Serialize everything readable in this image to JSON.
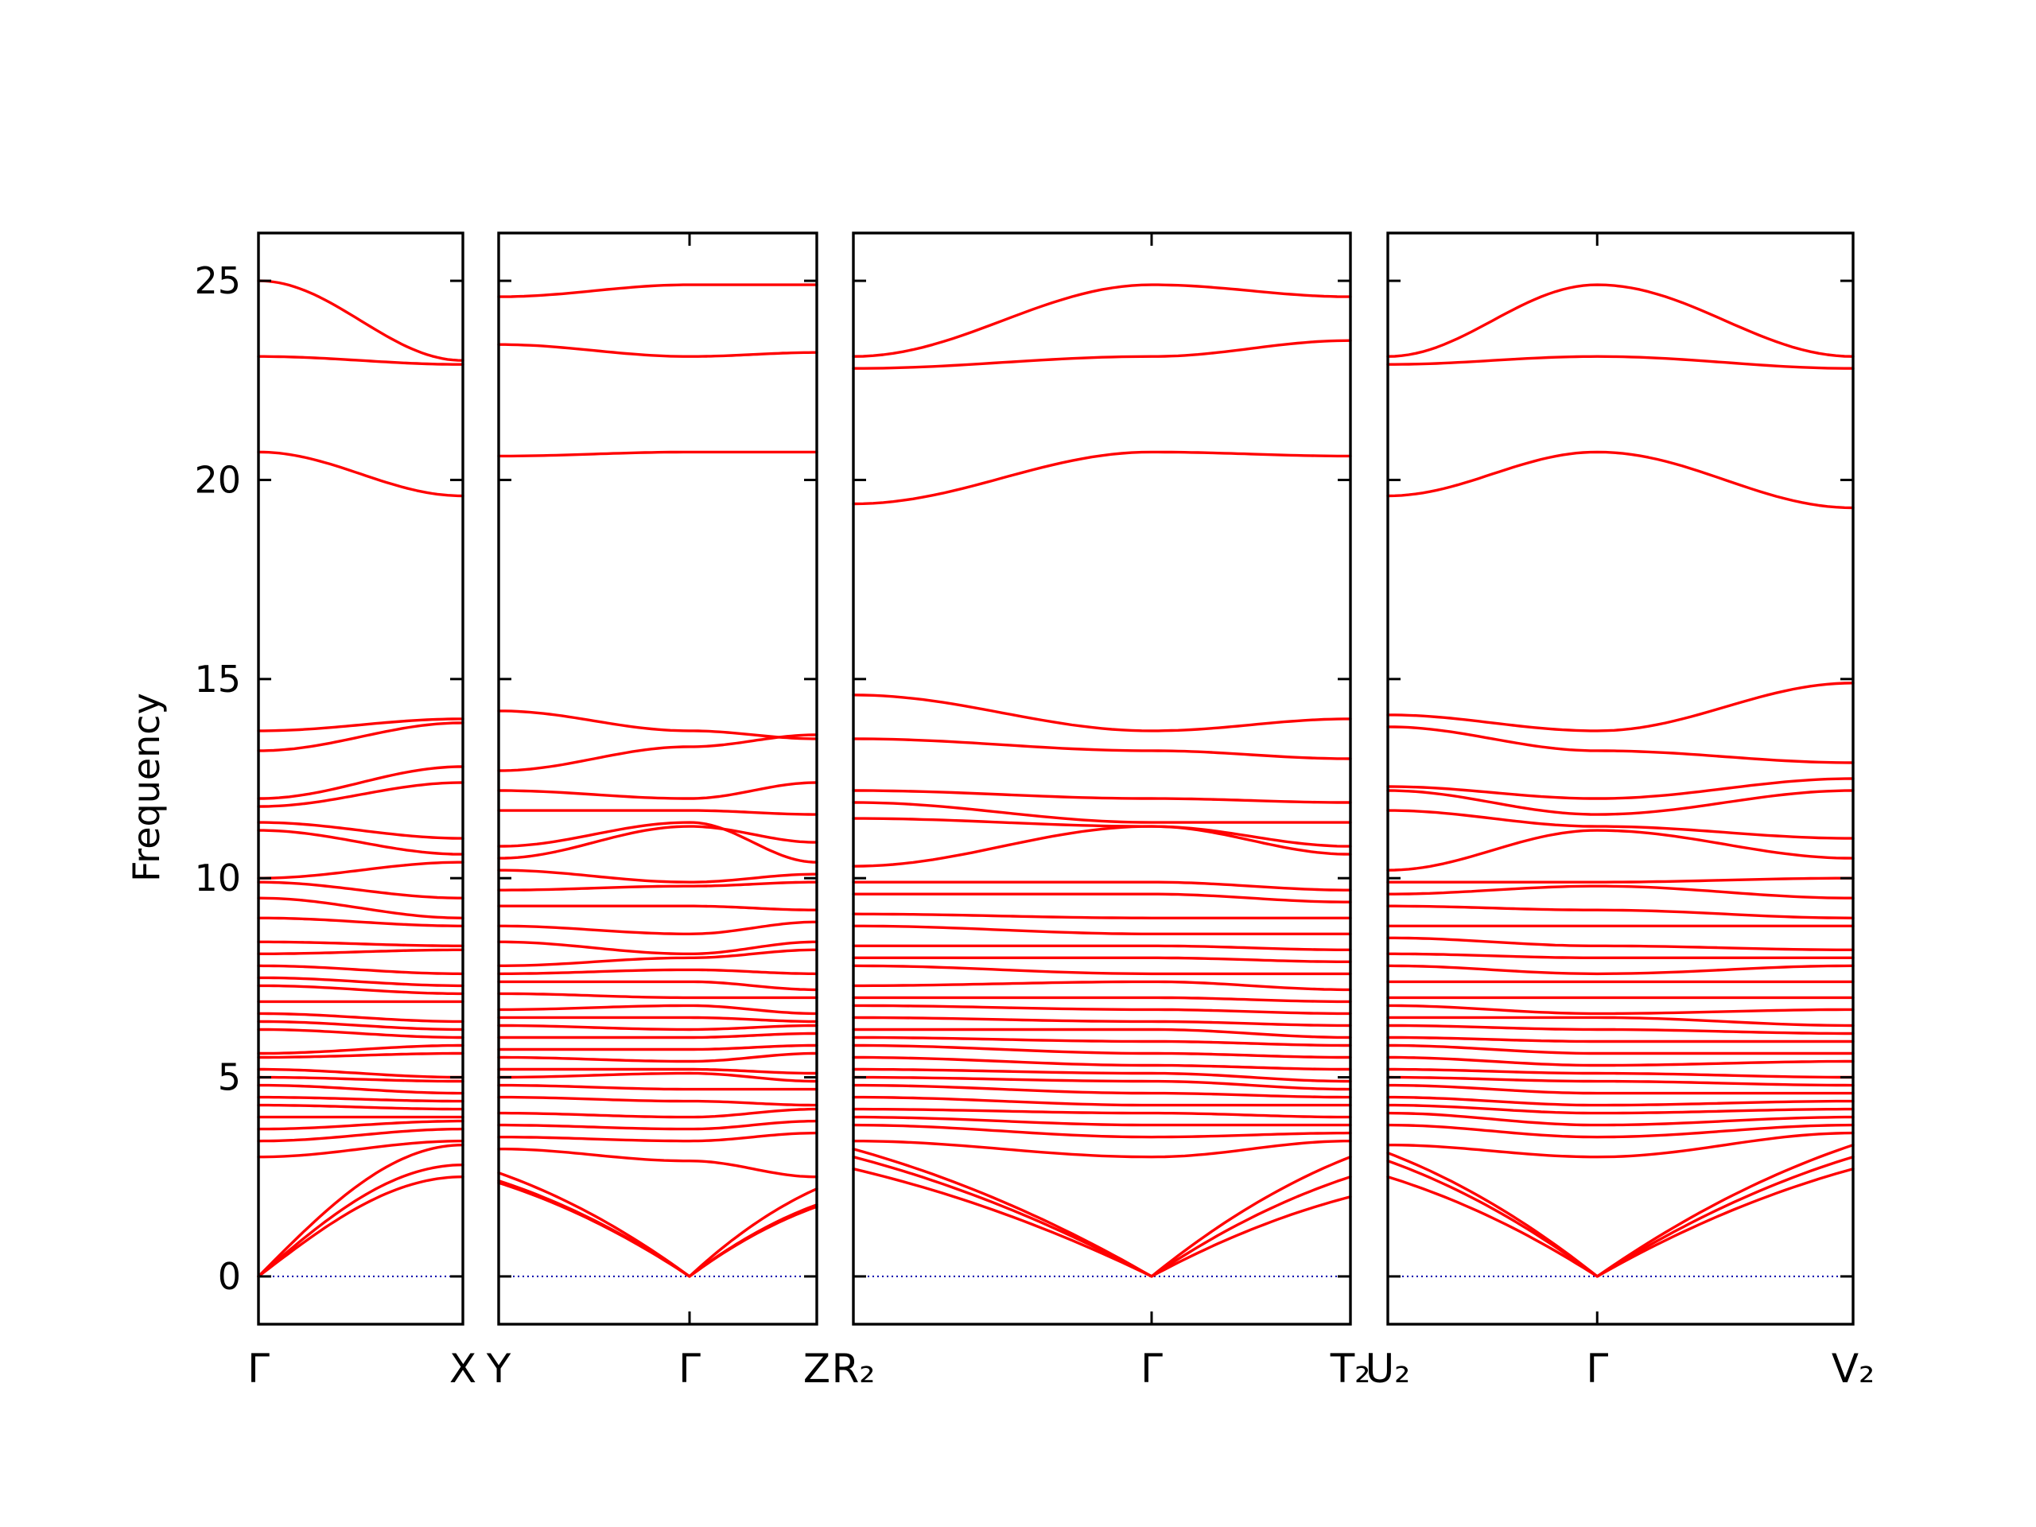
{
  "colors": {
    "band": "#ff0000",
    "zero_line": "#0000aa",
    "frame": "#000000"
  },
  "chart_data": {
    "type": "line",
    "title": "",
    "ylabel": "Frequency",
    "ylim": [
      -1.2,
      26.2
    ],
    "yticks": [
      0,
      5,
      10,
      15,
      20,
      25
    ],
    "ytick_labels": [
      "0",
      "5",
      "10",
      "15",
      "20",
      "25"
    ],
    "zero_line": true,
    "grid": false,
    "panels": [
      {
        "labels": [
          {
            "pos": 0,
            "text": "Γ"
          },
          {
            "pos": 1,
            "text": "X"
          }
        ],
        "mid_ticks": [],
        "bands": [
          [
            25.0,
            23.0
          ],
          [
            23.1,
            22.9
          ],
          [
            20.7,
            19.6
          ],
          [
            13.7,
            14.0
          ],
          [
            13.2,
            13.9
          ],
          [
            12.0,
            12.8
          ],
          [
            11.8,
            12.4
          ],
          [
            11.4,
            11.0
          ],
          [
            11.2,
            10.6
          ],
          [
            10.0,
            10.4
          ],
          [
            9.9,
            9.5
          ],
          [
            9.5,
            9.0
          ],
          [
            9.0,
            8.8
          ],
          [
            8.4,
            8.3
          ],
          [
            8.1,
            8.2
          ],
          [
            7.8,
            7.6
          ],
          [
            7.5,
            7.3
          ],
          [
            7.3,
            7.1
          ],
          [
            6.9,
            6.9
          ],
          [
            6.6,
            6.4
          ],
          [
            6.4,
            6.2
          ],
          [
            6.2,
            6.0
          ],
          [
            5.6,
            5.8
          ],
          [
            5.5,
            5.6
          ],
          [
            5.2,
            5.0
          ],
          [
            5.0,
            4.9
          ],
          [
            4.8,
            4.6
          ],
          [
            4.5,
            4.4
          ],
          [
            4.3,
            4.2
          ],
          [
            4.0,
            4.0
          ],
          [
            3.7,
            3.9
          ],
          [
            3.4,
            3.7
          ],
          [
            3.0,
            3.4
          ],
          [
            0,
            3.3
          ],
          [
            0,
            2.8
          ],
          [
            0,
            2.5
          ]
        ]
      },
      {
        "labels": [
          {
            "pos": 0,
            "text": "Y"
          },
          {
            "pos": 0.6,
            "text": "Γ"
          },
          {
            "pos": 1,
            "text": "Z"
          }
        ],
        "mid_ticks": [
          0.6
        ],
        "bands": [
          [
            24.6,
            24.9,
            24.9
          ],
          [
            23.4,
            23.1,
            23.2
          ],
          [
            20.6,
            20.7,
            20.7
          ],
          [
            14.2,
            13.7,
            13.5
          ],
          [
            12.7,
            13.3,
            13.6
          ],
          [
            12.2,
            12.0,
            12.4
          ],
          [
            11.7,
            11.7,
            11.6
          ],
          [
            10.8,
            11.4,
            10.4
          ],
          [
            10.5,
            11.3,
            10.9
          ],
          [
            10.2,
            9.9,
            10.1
          ],
          [
            9.7,
            9.8,
            9.9
          ],
          [
            9.3,
            9.3,
            9.2
          ],
          [
            8.8,
            8.6,
            8.9
          ],
          [
            8.4,
            8.1,
            8.4
          ],
          [
            7.8,
            8.0,
            8.2
          ],
          [
            7.6,
            7.7,
            7.6
          ],
          [
            7.4,
            7.4,
            7.2
          ],
          [
            7.1,
            7.0,
            7.0
          ],
          [
            6.7,
            6.8,
            6.6
          ],
          [
            6.5,
            6.5,
            6.4
          ],
          [
            6.3,
            6.2,
            6.3
          ],
          [
            6.0,
            6.0,
            6.1
          ],
          [
            5.7,
            5.7,
            5.8
          ],
          [
            5.5,
            5.4,
            5.6
          ],
          [
            5.2,
            5.2,
            5.1
          ],
          [
            5.0,
            5.1,
            4.9
          ],
          [
            4.8,
            4.7,
            4.7
          ],
          [
            4.5,
            4.4,
            4.3
          ],
          [
            4.1,
            4.0,
            4.2
          ],
          [
            3.8,
            3.7,
            3.9
          ],
          [
            3.5,
            3.4,
            3.6
          ],
          [
            3.2,
            2.9,
            2.5
          ],
          [
            2.6,
            0,
            2.2
          ],
          [
            2.4,
            0,
            1.8
          ],
          [
            2.35,
            0,
            1.75
          ]
        ]
      },
      {
        "labels": [
          {
            "pos": 0,
            "text": "R₂"
          },
          {
            "pos": 0.6,
            "text": "Γ"
          },
          {
            "pos": 1,
            "text": "T₂"
          }
        ],
        "mid_ticks": [
          0.6
        ],
        "bands": [
          [
            23.1,
            24.9,
            24.6
          ],
          [
            22.8,
            23.1,
            23.5
          ],
          [
            19.4,
            20.7,
            20.6
          ],
          [
            14.6,
            13.7,
            14.0
          ],
          [
            13.5,
            13.2,
            13.0
          ],
          [
            12.2,
            12.0,
            11.9
          ],
          [
            11.9,
            11.4,
            11.4
          ],
          [
            11.5,
            11.3,
            10.8
          ],
          [
            10.3,
            11.3,
            10.6
          ],
          [
            9.9,
            9.9,
            9.7
          ],
          [
            9.6,
            9.6,
            9.4
          ],
          [
            9.1,
            9.0,
            9.0
          ],
          [
            8.8,
            8.6,
            8.6
          ],
          [
            8.3,
            8.3,
            8.2
          ],
          [
            8.0,
            8.0,
            7.9
          ],
          [
            7.8,
            7.6,
            7.6
          ],
          [
            7.3,
            7.4,
            7.2
          ],
          [
            7.0,
            7.0,
            6.9
          ],
          [
            6.8,
            6.7,
            6.6
          ],
          [
            6.5,
            6.4,
            6.3
          ],
          [
            6.2,
            6.2,
            6.0
          ],
          [
            6.0,
            5.9,
            5.8
          ],
          [
            5.8,
            5.6,
            5.5
          ],
          [
            5.5,
            5.3,
            5.2
          ],
          [
            5.2,
            5.1,
            4.9
          ],
          [
            5.0,
            4.9,
            4.7
          ],
          [
            4.8,
            4.6,
            4.5
          ],
          [
            4.5,
            4.3,
            4.3
          ],
          [
            4.2,
            4.1,
            4.0
          ],
          [
            4.0,
            3.8,
            3.8
          ],
          [
            3.8,
            3.5,
            3.6
          ],
          [
            3.4,
            3.0,
            3.4
          ],
          [
            3.2,
            0,
            3.0
          ],
          [
            3.0,
            0,
            2.5
          ],
          [
            2.7,
            0,
            2.0
          ]
        ]
      },
      {
        "labels": [
          {
            "pos": 0,
            "text": "U₂"
          },
          {
            "pos": 0.45,
            "text": "Γ"
          },
          {
            "pos": 1,
            "text": "V₂"
          }
        ],
        "mid_ticks": [
          0.45
        ],
        "bands": [
          [
            23.1,
            24.9,
            23.1
          ],
          [
            22.9,
            23.1,
            22.8
          ],
          [
            19.6,
            20.7,
            19.3
          ],
          [
            14.1,
            13.7,
            14.9
          ],
          [
            13.8,
            13.2,
            12.9
          ],
          [
            12.3,
            12.0,
            12.5
          ],
          [
            12.2,
            11.6,
            12.2
          ],
          [
            11.7,
            11.3,
            11.0
          ],
          [
            10.2,
            11.2,
            10.5
          ],
          [
            9.9,
            9.9,
            10.0
          ],
          [
            9.6,
            9.8,
            9.5
          ],
          [
            9.3,
            9.2,
            9.0
          ],
          [
            8.8,
            8.8,
            8.8
          ],
          [
            8.5,
            8.3,
            8.2
          ],
          [
            8.1,
            8.0,
            8.0
          ],
          [
            7.8,
            7.6,
            7.8
          ],
          [
            7.4,
            7.4,
            7.4
          ],
          [
            7.0,
            7.0,
            7.0
          ],
          [
            6.8,
            6.6,
            6.7
          ],
          [
            6.5,
            6.5,
            6.3
          ],
          [
            6.3,
            6.2,
            6.1
          ],
          [
            6.0,
            5.9,
            5.9
          ],
          [
            5.8,
            5.6,
            5.6
          ],
          [
            5.5,
            5.3,
            5.4
          ],
          [
            5.2,
            5.1,
            5.0
          ],
          [
            5.0,
            4.9,
            4.8
          ],
          [
            4.8,
            4.6,
            4.6
          ],
          [
            4.5,
            4.3,
            4.4
          ],
          [
            4.3,
            4.1,
            4.2
          ],
          [
            4.1,
            3.8,
            4.0
          ],
          [
            3.8,
            3.5,
            3.8
          ],
          [
            3.3,
            3.0,
            3.6
          ],
          [
            3.1,
            0,
            3.3
          ],
          [
            2.9,
            0,
            3.0
          ],
          [
            2.5,
            0,
            2.7
          ]
        ]
      }
    ]
  }
}
